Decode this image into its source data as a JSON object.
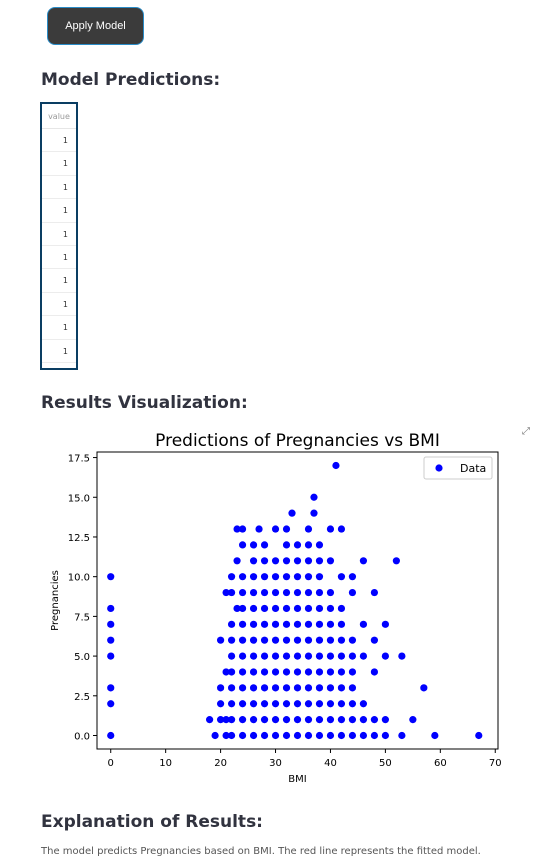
{
  "apply_button": {
    "label": "Apply Model"
  },
  "predictions": {
    "title": "Model Predictions:",
    "column_header": "value",
    "values": [
      "1",
      "1",
      "1",
      "1",
      "1",
      "1",
      "1",
      "1",
      "1",
      "1"
    ]
  },
  "visualization": {
    "title": "Results Visualization:"
  },
  "explanation": {
    "title": "Explanation of Results:",
    "text": "The model predicts Pregnancies based on BMI. The red line represents the fitted model."
  },
  "chart_data": {
    "type": "scatter",
    "title": "Predictions of Pregnancies vs BMI",
    "xlabel": "BMI",
    "ylabel": "Pregnancies",
    "xlim": [
      -2.5,
      70.5
    ],
    "ylim": [
      -0.85,
      17.85
    ],
    "xticks": [
      "0",
      "10",
      "20",
      "30",
      "40",
      "50",
      "60",
      "70"
    ],
    "yticks": [
      "0.0",
      "2.5",
      "5.0",
      "7.5",
      "10.0",
      "12.5",
      "15.0",
      "17.5"
    ],
    "legend": "top-right",
    "grid": false,
    "series": [
      {
        "name": "Data",
        "color": "#0000ff",
        "points": [
          [
            0,
            0
          ],
          [
            0,
            2
          ],
          [
            0,
            3
          ],
          [
            0,
            5
          ],
          [
            0,
            6
          ],
          [
            0,
            7
          ],
          [
            0,
            8
          ],
          [
            0,
            10
          ],
          [
            18,
            1
          ],
          [
            19,
            0
          ],
          [
            20,
            1
          ],
          [
            20,
            2
          ],
          [
            20,
            3
          ],
          [
            20,
            6
          ],
          [
            21,
            1
          ],
          [
            21,
            0
          ],
          [
            21,
            4
          ],
          [
            21,
            9
          ],
          [
            22,
            0
          ],
          [
            22,
            1
          ],
          [
            22,
            2
          ],
          [
            22,
            3
          ],
          [
            22,
            4
          ],
          [
            22,
            5
          ],
          [
            22,
            6
          ],
          [
            22,
            7
          ],
          [
            22,
            9
          ],
          [
            22,
            10
          ],
          [
            23,
            13
          ],
          [
            23,
            11
          ],
          [
            23,
            8
          ],
          [
            24,
            0
          ],
          [
            24,
            1
          ],
          [
            24,
            2
          ],
          [
            24,
            3
          ],
          [
            24,
            4
          ],
          [
            24,
            5
          ],
          [
            24,
            6
          ],
          [
            24,
            7
          ],
          [
            24,
            8
          ],
          [
            24,
            9
          ],
          [
            24,
            10
          ],
          [
            24,
            12
          ],
          [
            24,
            13
          ],
          [
            26,
            0
          ],
          [
            26,
            1
          ],
          [
            26,
            2
          ],
          [
            26,
            3
          ],
          [
            26,
            4
          ],
          [
            26,
            5
          ],
          [
            26,
            6
          ],
          [
            26,
            7
          ],
          [
            26,
            8
          ],
          [
            26,
            9
          ],
          [
            26,
            10
          ],
          [
            26,
            11
          ],
          [
            26,
            12
          ],
          [
            27,
            13
          ],
          [
            28,
            0
          ],
          [
            28,
            1
          ],
          [
            28,
            2
          ],
          [
            28,
            3
          ],
          [
            28,
            4
          ],
          [
            28,
            5
          ],
          [
            28,
            6
          ],
          [
            28,
            7
          ],
          [
            28,
            8
          ],
          [
            28,
            9
          ],
          [
            28,
            10
          ],
          [
            28,
            11
          ],
          [
            28,
            12
          ],
          [
            30,
            0
          ],
          [
            30,
            1
          ],
          [
            30,
            2
          ],
          [
            30,
            3
          ],
          [
            30,
            4
          ],
          [
            30,
            5
          ],
          [
            30,
            6
          ],
          [
            30,
            7
          ],
          [
            30,
            8
          ],
          [
            30,
            9
          ],
          [
            30,
            10
          ],
          [
            30,
            11
          ],
          [
            30,
            13
          ],
          [
            32,
            0
          ],
          [
            32,
            1
          ],
          [
            32,
            2
          ],
          [
            32,
            3
          ],
          [
            32,
            4
          ],
          [
            32,
            5
          ],
          [
            32,
            6
          ],
          [
            32,
            7
          ],
          [
            32,
            8
          ],
          [
            32,
            9
          ],
          [
            32,
            10
          ],
          [
            32,
            11
          ],
          [
            32,
            12
          ],
          [
            32,
            13
          ],
          [
            33,
            14
          ],
          [
            34,
            0
          ],
          [
            34,
            1
          ],
          [
            34,
            2
          ],
          [
            34,
            3
          ],
          [
            34,
            4
          ],
          [
            34,
            5
          ],
          [
            34,
            6
          ],
          [
            34,
            7
          ],
          [
            34,
            8
          ],
          [
            34,
            9
          ],
          [
            34,
            10
          ],
          [
            34,
            11
          ],
          [
            34,
            12
          ],
          [
            36,
            0
          ],
          [
            36,
            1
          ],
          [
            36,
            2
          ],
          [
            36,
            3
          ],
          [
            36,
            4
          ],
          [
            36,
            5
          ],
          [
            36,
            6
          ],
          [
            36,
            7
          ],
          [
            36,
            8
          ],
          [
            36,
            9
          ],
          [
            36,
            10
          ],
          [
            36,
            11
          ],
          [
            36,
            12
          ],
          [
            36,
            13
          ],
          [
            37,
            14
          ],
          [
            37,
            15
          ],
          [
            38,
            0
          ],
          [
            38,
            1
          ],
          [
            38,
            2
          ],
          [
            38,
            3
          ],
          [
            38,
            4
          ],
          [
            38,
            5
          ],
          [
            38,
            6
          ],
          [
            38,
            7
          ],
          [
            38,
            8
          ],
          [
            38,
            9
          ],
          [
            38,
            10
          ],
          [
            38,
            11
          ],
          [
            38,
            12
          ],
          [
            40,
            0
          ],
          [
            40,
            1
          ],
          [
            40,
            2
          ],
          [
            40,
            3
          ],
          [
            40,
            4
          ],
          [
            40,
            5
          ],
          [
            40,
            6
          ],
          [
            40,
            7
          ],
          [
            40,
            8
          ],
          [
            40,
            9
          ],
          [
            40,
            11
          ],
          [
            40,
            13
          ],
          [
            41,
            17
          ],
          [
            42,
            0
          ],
          [
            42,
            1
          ],
          [
            42,
            2
          ],
          [
            42,
            3
          ],
          [
            42,
            4
          ],
          [
            42,
            5
          ],
          [
            42,
            6
          ],
          [
            42,
            7
          ],
          [
            42,
            8
          ],
          [
            42,
            10
          ],
          [
            42,
            13
          ],
          [
            44,
            0
          ],
          [
            44,
            1
          ],
          [
            44,
            2
          ],
          [
            44,
            3
          ],
          [
            44,
            4
          ],
          [
            44,
            5
          ],
          [
            44,
            6
          ],
          [
            44,
            9
          ],
          [
            44,
            10
          ],
          [
            46,
            0
          ],
          [
            46,
            1
          ],
          [
            46,
            2
          ],
          [
            46,
            5
          ],
          [
            46,
            7
          ],
          [
            46,
            11
          ],
          [
            48,
            0
          ],
          [
            48,
            1
          ],
          [
            48,
            4
          ],
          [
            48,
            6
          ],
          [
            48,
            9
          ],
          [
            50,
            0
          ],
          [
            50,
            1
          ],
          [
            50,
            5
          ],
          [
            50,
            7
          ],
          [
            52,
            11
          ],
          [
            53,
            0
          ],
          [
            53,
            5
          ],
          [
            55,
            1
          ],
          [
            57,
            3
          ],
          [
            59,
            0
          ],
          [
            67,
            0
          ]
        ]
      }
    ]
  }
}
